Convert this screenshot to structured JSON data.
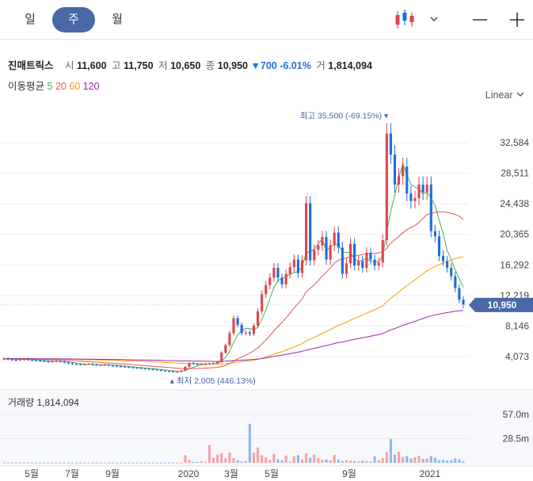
{
  "tabs": [
    {
      "label": "일",
      "active": false
    },
    {
      "label": "주",
      "active": true
    },
    {
      "label": "월",
      "active": false
    }
  ],
  "controls": {
    "chart_type_icon": "candlestick-icon",
    "dropdown_icon": "chevron-down-icon",
    "zoom_out_icon": "minus-icon",
    "zoom_in_icon": "plus-icon"
  },
  "info": {
    "name": "진매트릭스",
    "open_label": "시",
    "open": "11,600",
    "high_label": "고",
    "high": "11,750",
    "low_label": "저",
    "low": "10,650",
    "close_label": "종",
    "close": "10,950",
    "change": "▼700 -6.01%",
    "volume_label": "거",
    "volume": "1,814,094"
  },
  "ma": {
    "label": "이동평균",
    "items": [
      {
        "period": "5",
        "color": "#4caf50"
      },
      {
        "period": "20",
        "color": "#ef5350"
      },
      {
        "period": "60",
        "color": "#ff9800"
      },
      {
        "period": "120",
        "color": "#9c27b0"
      }
    ]
  },
  "scale_mode": "Linear",
  "colors": {
    "up": "#e0454f",
    "down": "#1e6fd9",
    "accent": "#4a67a8"
  },
  "chart_data": {
    "type": "candlestick",
    "price_axis": {
      "ticks": [
        "32,584",
        "28,511",
        "24,438",
        "20,365",
        "16,292",
        "12,219",
        "8,146",
        "4,073"
      ],
      "ylim": [
        0,
        37000
      ]
    },
    "current_price_tag": "10,950",
    "high_marker": "최고 35,500 (-69.15%)",
    "low_marker": "최저 2,005 (446.13%)",
    "x_ticks": [
      "5월",
      "7월",
      "9월",
      "2020",
      "3월",
      "5월",
      "9월",
      "2021"
    ],
    "price_series": [
      3800,
      3700,
      3650,
      3600,
      3700,
      3750,
      3650,
      3600,
      3550,
      3500,
      3450,
      3400,
      3450,
      3500,
      3400,
      3300,
      3200,
      3100,
      3050,
      3000,
      3050,
      3100,
      3000,
      2950,
      2950,
      3000,
      2900,
      2850,
      2800,
      2750,
      2700,
      2650,
      2600,
      2550,
      2500,
      2450,
      2400,
      2350,
      2300,
      2200,
      2150,
      2100,
      2050,
      2050,
      2200,
      2700,
      3200,
      3100,
      3050,
      3050,
      3100,
      3150,
      3200,
      3350,
      4600,
      5600,
      7200,
      9200,
      8300,
      7200,
      7300,
      7100,
      8200,
      10100,
      12400,
      13600,
      14600,
      15900,
      14600,
      13700,
      15100,
      16000,
      17000,
      15200,
      16900,
      24500,
      16900,
      18300,
      18900,
      20000,
      17000,
      18900,
      20600,
      18600,
      15100,
      16500,
      19100,
      16200,
      16800,
      15900,
      17900,
      17000,
      16200,
      16600,
      19600,
      33800,
      31000,
      27000,
      28100,
      29400,
      25800,
      24800,
      25200,
      27000,
      26000,
      27000,
      20800,
      20100,
      17500,
      16800,
      15900,
      14800,
      13200,
      11650,
      10950
    ],
    "volume_axis": {
      "ticks": [
        "57.0m",
        "28.5m"
      ]
    },
    "volume_title": "거래량 1,814,094",
    "volume_series": [
      0.5,
      0.4,
      0.5,
      0.3,
      0.4,
      0.5,
      0.3,
      0.4,
      0.3,
      0.2,
      0.3,
      0.3,
      0.2,
      0.3,
      0.2,
      0.3,
      0.2,
      0.3,
      0.2,
      0.3,
      0.2,
      0.2,
      0.3,
      0.2,
      0.2,
      0.3,
      0.2,
      0.2,
      0.2,
      0.3,
      0.2,
      0.3,
      0.2,
      0.3,
      0.2,
      0.2,
      0.2,
      0.3,
      0.2,
      0.3,
      0.2,
      0.3,
      0.4,
      0.3,
      0.3,
      9.0,
      3.5,
      1.2,
      1.0,
      2.0,
      1.2,
      21.0,
      6.0,
      9.5,
      11.5,
      5.2,
      12.0,
      5.5,
      3.2,
      1.5,
      2.2,
      46.0,
      12.0,
      18.0,
      9.0,
      6.5,
      3.5,
      10.5,
      4.0,
      3.0,
      8.5,
      1.5,
      7.5,
      9.0,
      4.0,
      11.0,
      6.0,
      9.5,
      5.5,
      3.5,
      4.0,
      3.0,
      9.5,
      4.0,
      2.0,
      3.0,
      2.5,
      2.0,
      1.5,
      2.5,
      2.0,
      1.5,
      7.5,
      3.0,
      5.5,
      12.5,
      28.0,
      9.5,
      13.0,
      7.0,
      8.0,
      5.0,
      6.5,
      8.0,
      4.5,
      5.0,
      8.0,
      6.0,
      3.0,
      3.5,
      2.5,
      3.0,
      5.0,
      4.0,
      1.8
    ]
  }
}
